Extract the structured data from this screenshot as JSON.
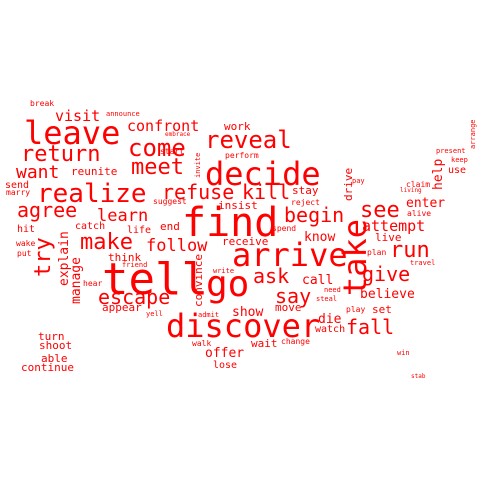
{
  "color": "#ff0000",
  "words": [
    "tell",
    "go",
    "find",
    "discover",
    "arrive",
    "decide",
    "take",
    "leave",
    "come",
    "reveal",
    "realize",
    "return",
    "meet",
    "refuse",
    "kill",
    "agree",
    "want",
    "confront",
    "visit",
    "learn",
    "make",
    "follow",
    "escape",
    "try",
    "begin",
    "see",
    "run",
    "ask",
    "say",
    "give",
    "fall",
    "attempt",
    "believe",
    "call",
    "know",
    "die",
    "show",
    "offer",
    "wait",
    "end",
    "reunite",
    "work",
    "explain",
    "manage",
    "convince",
    "help",
    "enter",
    "live",
    "drive",
    "receive",
    "stay",
    "insist",
    "catch",
    "think",
    "appear",
    "turn",
    "shoot",
    "able",
    "continue",
    "hit",
    "wake",
    "put",
    "send",
    "marry",
    "hear",
    "friend",
    "life",
    "start",
    "suggest",
    "embrace",
    "announce",
    "break",
    "invite",
    "perform",
    "spend",
    "reject",
    "need",
    "steal",
    "pay",
    "plan",
    "move",
    "set",
    "watch",
    "play",
    "change",
    "walk",
    "lose",
    "admit",
    "write",
    "yell",
    "claim",
    "living",
    "alive",
    "use",
    "keep",
    "present",
    "arrange",
    "travel",
    "win",
    "stab"
  ]
}
